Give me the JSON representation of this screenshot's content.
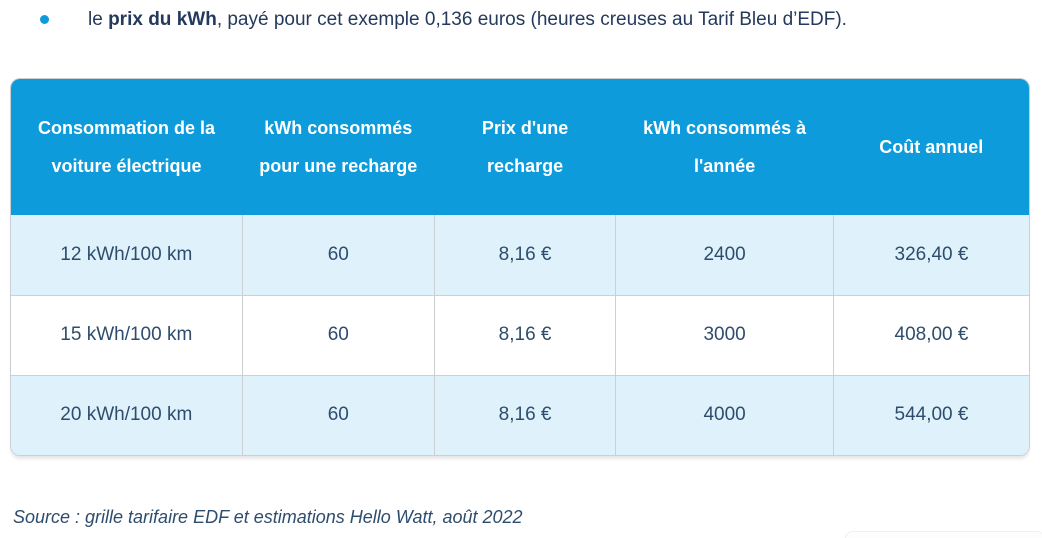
{
  "intro": {
    "prefix": "le ",
    "bold": "prix du kWh",
    "rest": ", payé pour cet exemple 0,136 euros (heures creuses au Tarif Bleu d’EDF)."
  },
  "table": {
    "headers": [
      "Consommation de la voiture électrique",
      "kWh consommés pour une recharge",
      "Prix d'une recharge",
      "kWh consommés à l'année",
      "Coût annuel"
    ],
    "rows": [
      [
        "12 kWh/100 km",
        "60",
        "8,16 €",
        "2400",
        "326,40 €"
      ],
      [
        "15 kWh/100 km",
        "60",
        "8,16 €",
        "3000",
        "408,00 €"
      ],
      [
        "20 kWh/100 km",
        "60",
        "8,16 €",
        "4000",
        "544,00 €"
      ]
    ]
  },
  "source": "Source : grille tarifaire EDF et estimations Hello Watt, août 2022",
  "colors": {
    "header_bg": "#0d9bdb",
    "row_alt_bg": "#dff2fb",
    "border": "#cbd0d5",
    "body_text": "#2e4d6d",
    "intro_text": "#24395b",
    "bullet": "#0d9bdb"
  }
}
